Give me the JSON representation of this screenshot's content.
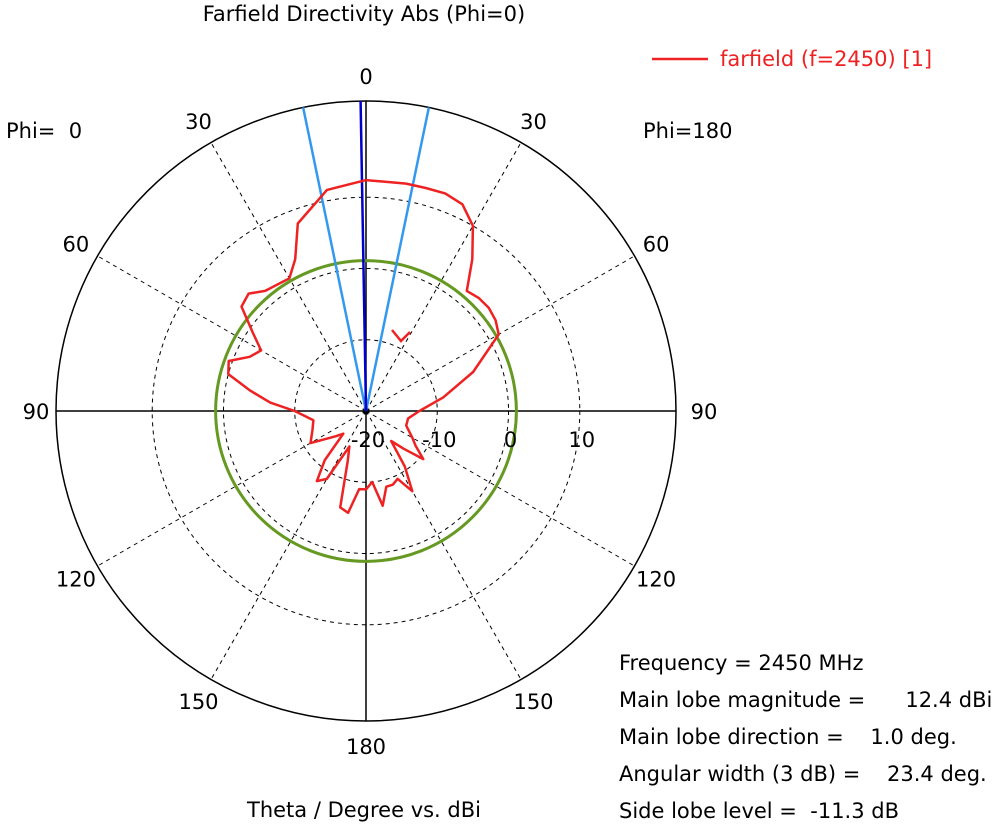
{
  "chart_data": {
    "type": "polar",
    "title": "Farfield Directivity Abs (Phi=0)",
    "xlabel": "Theta / Degree vs. dBi",
    "left_label": "Phi=  0",
    "right_label": "Phi=180",
    "angle_ticks": [
      {
        "angle": 0,
        "label": "0"
      },
      {
        "angle": 30,
        "label": "30"
      },
      {
        "angle": -30,
        "label": "30"
      },
      {
        "angle": 60,
        "label": "60"
      },
      {
        "angle": -60,
        "label": "60"
      },
      {
        "angle": 90,
        "label": "90"
      },
      {
        "angle": -90,
        "label": "90"
      },
      {
        "angle": 120,
        "label": "120"
      },
      {
        "angle": -120,
        "label": "120"
      },
      {
        "angle": 150,
        "label": "150"
      },
      {
        "angle": -150,
        "label": "150"
      },
      {
        "angle": 180,
        "label": "180"
      }
    ],
    "radial_ticks": [
      {
        "value": -20,
        "label": "-20"
      },
      {
        "value": -10,
        "label": "-10"
      },
      {
        "value": 0,
        "label": "0"
      },
      {
        "value": 10,
        "label": "10"
      }
    ],
    "rlim": [
      -20,
      23.5
    ],
    "grid": true,
    "series": [
      {
        "name": "farfield (f=2450) [1]",
        "color": "#ee2222",
        "theta": [
          0,
          10,
          20,
          25,
          30,
          40,
          45,
          50,
          55,
          60,
          65,
          70,
          75,
          80,
          85,
          90,
          100,
          110,
          120,
          130,
          135,
          140,
          145,
          150,
          155,
          160,
          165,
          170,
          175,
          180,
          -175,
          -170,
          -165,
          -160,
          -155,
          -150,
          -145,
          -140,
          -135,
          -130,
          -125,
          -120,
          -110,
          -100,
          -90,
          -80,
          -70,
          -60,
          -55,
          -50,
          -45,
          -40,
          -35,
          -30,
          -25,
          -20,
          -15,
          -10,
          0
        ],
        "r": [
          12.4,
          11.5,
          8.0,
          3.5,
          1.5,
          2.0,
          3.3,
          2.8,
          -0.5,
          -3.0,
          -2.0,
          0.5,
          0.0,
          -3.5,
          -6.5,
          -10.0,
          -12.5,
          -12.0,
          -11.0,
          -14.5,
          -15.5,
          -11.0,
          -8.0,
          -9.0,
          -14.5,
          -12.5,
          -6.0,
          -5.5,
          -9.0,
          -9.0,
          -10.0,
          -6.5,
          -9.0,
          -9.0,
          -9.5,
          -7.0,
          -10.5,
          -14.5,
          -12.5,
          -9.5,
          -11.5,
          -12.5,
          -14.0,
          -14.0,
          -12.5,
          -9.0,
          -4.0,
          1.5,
          2.2,
          2.5,
          2.4,
          2.0,
          6.0,
          10.0,
          12.0,
          12.5,
          12.4,
          12.4,
          12.4
        ]
      }
    ],
    "main_lobe": {
      "theta": 1.0,
      "color": "#0000cc"
    },
    "beam_edges": {
      "thetas": [
        -11.7,
        11.7
      ],
      "color": "#3399ee"
    },
    "threshold_circle": {
      "value": 1.1,
      "color": "#669922"
    },
    "info": {
      "frequency": "Frequency = 2450 MHz",
      "magnitude": "Main lobe magnitude =      12.4 dBi",
      "direction": "Main lobe direction =    1.0 deg.",
      "width": "Angular width (3 dB) =    23.4 deg.",
      "sidelobe": "Side lobe level =  -11.3 dB"
    }
  }
}
